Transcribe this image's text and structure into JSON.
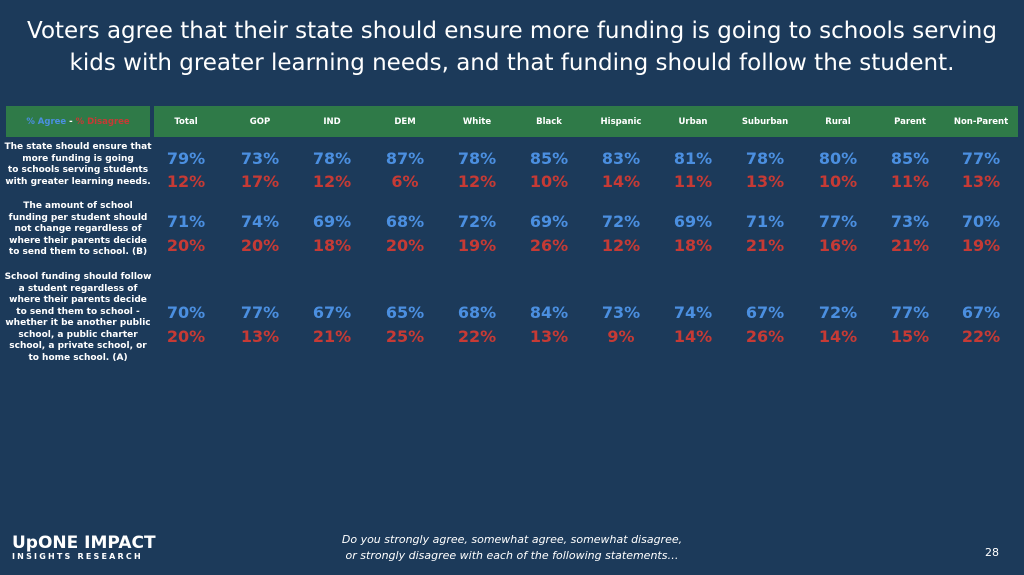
{
  "title": [
    "Voters agree that their state should ensure more funding is going to schools serving",
    "kids with greater learning needs, and that funding should follow the student."
  ],
  "legend": {
    "agree": "% Agree",
    "sep": " - ",
    "disagree": "% Disagree"
  },
  "table": {
    "columns": [
      "Total",
      "GOP",
      "IND",
      "DEM",
      "White",
      "Black",
      "Hispanic",
      "Urban",
      "Suburban",
      "Rural",
      "Parent",
      "Non-Parent"
    ],
    "rows": [
      {
        "statement": [
          "The state should ensure that",
          "more funding is going",
          "to schools serving students",
          "with greater learning needs."
        ],
        "agree": [
          "79%",
          "73%",
          "78%",
          "87%",
          "78%",
          "85%",
          "83%",
          "81%",
          "78%",
          "80%",
          "85%",
          "77%"
        ],
        "disagree": [
          "12%",
          "17%",
          "12%",
          "6%",
          "12%",
          "10%",
          "14%",
          "11%",
          "13%",
          "10%",
          "11%",
          "13%"
        ]
      },
      {
        "statement": [
          "The amount of school",
          "funding per student should",
          "not change regardless of",
          "where their parents decide",
          "to send them to school. (B)"
        ],
        "agree": [
          "71%",
          "74%",
          "69%",
          "68%",
          "72%",
          "69%",
          "72%",
          "69%",
          "71%",
          "77%",
          "73%",
          "70%"
        ],
        "disagree": [
          "20%",
          "20%",
          "18%",
          "20%",
          "19%",
          "26%",
          "12%",
          "18%",
          "21%",
          "16%",
          "21%",
          "19%"
        ]
      },
      {
        "statement": [
          "School funding should follow",
          "a student regardless of",
          "where their parents decide",
          "to send them to school -",
          "whether it be another public",
          "school, a public charter",
          "school, a private school, or",
          "to home school. (A)"
        ],
        "agree": [
          "70%",
          "77%",
          "67%",
          "65%",
          "68%",
          "84%",
          "73%",
          "74%",
          "67%",
          "72%",
          "77%",
          "67%"
        ],
        "disagree": [
          "20%",
          "13%",
          "21%",
          "25%",
          "22%",
          "13%",
          "9%",
          "14%",
          "26%",
          "14%",
          "15%",
          "22%"
        ]
      }
    ]
  },
  "footer": {
    "logo": "UpONE IMPACT",
    "logo_sub": "INSIGHTS RESEARCH",
    "question": [
      "Do you strongly agree, somewhat agree, somewhat disagree,",
      "or strongly disagree with each of the following statements…"
    ],
    "page": "28"
  }
}
